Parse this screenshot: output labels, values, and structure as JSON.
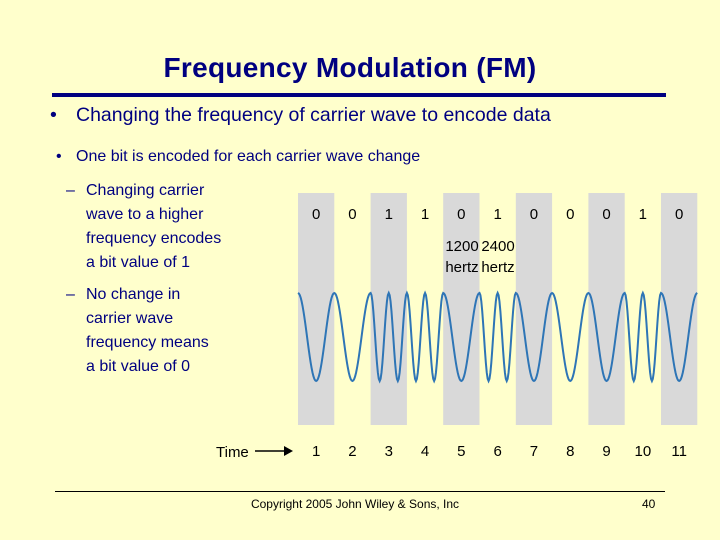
{
  "slide": {
    "title": "Frequency Modulation (FM)",
    "bullet1": "Changing the frequency of carrier wave to encode data",
    "bullet2": "One bit is encoded for each carrier wave change",
    "sub1": [
      "Changing carrier",
      "wave to a higher",
      "frequency encodes",
      "a bit value of 1"
    ],
    "sub2": [
      "No change in",
      "carrier wave",
      "frequency means",
      "a bit value of 0"
    ],
    "bullet_symbol": "•",
    "dash_symbol": "–"
  },
  "diagram": {
    "bits": [
      "0",
      "0",
      "1",
      "1",
      "0",
      "1",
      "0",
      "0",
      "0",
      "1",
      "0"
    ],
    "time_label": "Time",
    "time_ticks": [
      "1",
      "2",
      "3",
      "4",
      "5",
      "6",
      "7",
      "8",
      "9",
      "10",
      "11"
    ],
    "freq_low": [
      "1200",
      "hertz"
    ],
    "freq_high": [
      "2400",
      "hertz"
    ],
    "colors": {
      "background": "#FFFFCC",
      "shaded_cell": "#D9D9D9",
      "wave": "#2E75B6",
      "title": "#000080"
    }
  },
  "footer": {
    "copyright": "Copyright 2005 John Wiley & Sons, Inc",
    "page": "40"
  }
}
